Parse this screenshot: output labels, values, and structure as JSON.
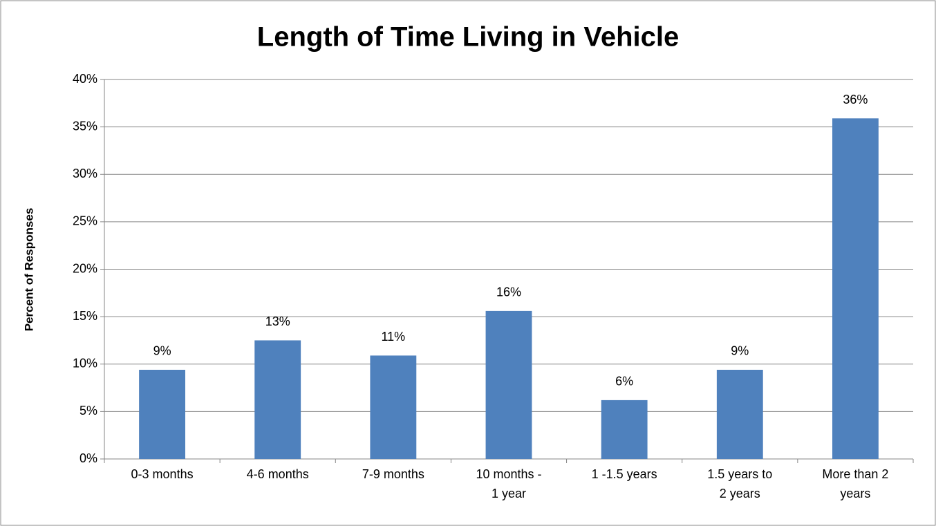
{
  "chart_data": {
    "type": "bar",
    "title": "Length of Time Living in Vehicle",
    "y_label": "Percent of Responses",
    "categories": [
      "0-3 months",
      "4-6 months",
      "7-9 months",
      "10 months - 1 year",
      "1 -1.5 years",
      "1.5 years to 2 years",
      "More than 2 years"
    ],
    "values": [
      9.4,
      12.5,
      10.9,
      15.6,
      6.2,
      9.4,
      35.9
    ],
    "value_labels": [
      "9%",
      "13%",
      "11%",
      "16%",
      "6%",
      "9%",
      "36%"
    ],
    "color": "#4f81bd",
    "ylim": [
      0,
      40
    ],
    "yticks": [
      {
        "value": 0,
        "label": "0%"
      },
      {
        "value": 5,
        "label": "5%"
      },
      {
        "value": 10,
        "label": "10%"
      },
      {
        "value": 15,
        "label": "15%"
      },
      {
        "value": 20,
        "label": "20%"
      },
      {
        "value": 25,
        "label": "25%"
      },
      {
        "value": 30,
        "label": "30%"
      },
      {
        "value": 35,
        "label": "35%"
      },
      {
        "value": 40,
        "label": "40%"
      }
    ],
    "grid": true
  }
}
